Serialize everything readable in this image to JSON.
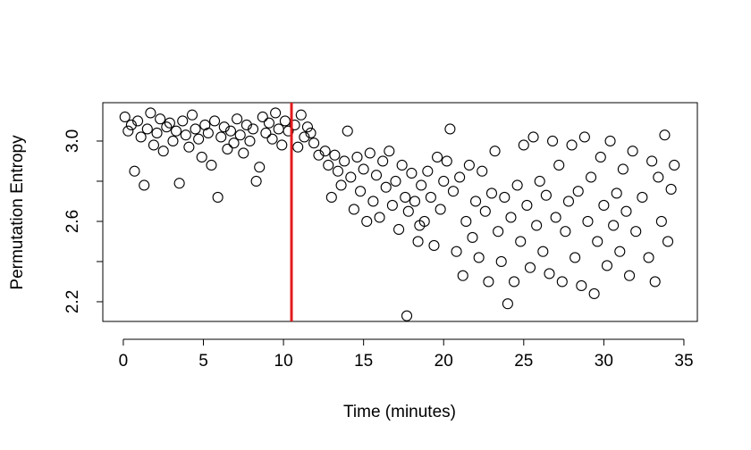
{
  "chart_data": {
    "type": "scatter",
    "xlabel": "Time (minutes)",
    "ylabel": "Permutation Entropy",
    "xlim": [
      -1.28,
      35.84
    ],
    "ylim": [
      2.102,
      3.191
    ],
    "xticks": [
      0,
      5,
      10,
      15,
      20,
      25,
      30,
      35
    ],
    "yticks": [
      2.2,
      2.6,
      {
        "value": 3,
        "label": "3.0"
      }
    ],
    "yminor_ticks": [
      2.4,
      2.8
    ],
    "color": "#000000",
    "vline": {
      "x": 10.5,
      "color": "#e41a1c"
    },
    "x": [
      0.1,
      0.3,
      0.5,
      0.7,
      0.9,
      1.1,
      1.3,
      1.5,
      1.7,
      1.9,
      2.1,
      2.3,
      2.5,
      2.7,
      2.9,
      3.1,
      3.3,
      3.5,
      3.7,
      3.9,
      4.1,
      4.3,
      4.5,
      4.7,
      4.9,
      5.1,
      5.3,
      5.5,
      5.7,
      5.9,
      6.1,
      6.3,
      6.5,
      6.7,
      6.9,
      7.1,
      7.3,
      7.5,
      7.7,
      7.9,
      8.1,
      8.3,
      8.5,
      8.7,
      8.9,
      9.1,
      9.3,
      9.5,
      9.7,
      9.9,
      10.1,
      10.3,
      10.7,
      10.9,
      11.1,
      11.3,
      11.5,
      11.7,
      11.9,
      12.2,
      12.6,
      12.8,
      13.0,
      13.2,
      13.4,
      13.6,
      13.8,
      14.0,
      14.2,
      14.4,
      14.6,
      14.8,
      15.0,
      15.2,
      15.4,
      15.6,
      15.8,
      16.0,
      16.2,
      16.4,
      16.6,
      16.8,
      17.0,
      17.2,
      17.4,
      17.6,
      17.8,
      18.0,
      18.2,
      18.4,
      18.6,
      18.8,
      19.0,
      19.2,
      19.4,
      19.6,
      19.8,
      20.0,
      17.7,
      18.5,
      20.2,
      20.4,
      20.6,
      20.8,
      21.0,
      21.2,
      21.4,
      21.6,
      21.8,
      22.0,
      22.2,
      22.4,
      22.6,
      22.8,
      23.0,
      23.2,
      23.4,
      23.6,
      23.8,
      24.0,
      24.2,
      24.4,
      24.6,
      24.8,
      25.0,
      25.2,
      25.4,
      25.6,
      25.8,
      26.0,
      26.2,
      26.4,
      26.6,
      26.8,
      27.0,
      27.2,
      27.4,
      27.6,
      27.8,
      28.0,
      28.2,
      28.4,
      28.6,
      28.8,
      29.0,
      29.2,
      29.4,
      29.6,
      29.8,
      30.0,
      30.2,
      30.4,
      30.6,
      30.8,
      31.0,
      31.2,
      31.4,
      31.6,
      31.8,
      32.0,
      32.4,
      32.8,
      33.0,
      33.2,
      33.4,
      33.6,
      33.8,
      34.0,
      34.2,
      34.4
    ],
    "values": [
      3.12,
      3.05,
      3.08,
      2.85,
      3.1,
      3.02,
      2.78,
      3.06,
      3.14,
      2.98,
      3.04,
      3.11,
      2.95,
      3.07,
      3.09,
      3.0,
      3.05,
      2.79,
      3.1,
      3.03,
      2.97,
      3.13,
      3.06,
      3.01,
      2.92,
      3.08,
      3.04,
      2.88,
      3.1,
      2.72,
      3.02,
      3.07,
      2.96,
      3.05,
      2.99,
      3.11,
      3.03,
      2.94,
      3.08,
      3.0,
      3.06,
      2.8,
      2.87,
      3.12,
      3.04,
      3.09,
      3.01,
      3.14,
      3.06,
      2.98,
      3.1,
      3.05,
      3.08,
      2.97,
      3.13,
      3.02,
      3.07,
      3.04,
      2.99,
      2.93,
      2.95,
      2.88,
      2.72,
      2.93,
      2.85,
      2.78,
      2.9,
      3.05,
      2.82,
      2.66,
      2.92,
      2.75,
      2.86,
      2.6,
      2.94,
      2.7,
      2.83,
      2.62,
      2.9,
      2.77,
      2.95,
      2.68,
      2.8,
      2.56,
      2.88,
      2.72,
      2.65,
      2.84,
      2.7,
      2.5,
      2.78,
      2.6,
      2.85,
      2.72,
      2.48,
      2.92,
      2.66,
      2.8,
      2.13,
      2.58,
      2.9,
      3.06,
      2.75,
      2.45,
      2.82,
      2.33,
      2.6,
      2.88,
      2.52,
      2.7,
      2.42,
      2.85,
      2.65,
      2.3,
      2.74,
      2.95,
      2.55,
      2.4,
      2.72,
      2.19,
      2.62,
      2.3,
      2.78,
      2.5,
      2.98,
      2.68,
      2.37,
      3.02,
      2.58,
      2.8,
      2.45,
      2.73,
      2.34,
      3.0,
      2.62,
      2.88,
      2.3,
      2.55,
      2.7,
      2.98,
      2.42,
      2.75,
      2.28,
      3.02,
      2.6,
      2.82,
      2.24,
      2.5,
      2.92,
      2.68,
      2.38,
      3.0,
      2.58,
      2.74,
      2.45,
      2.86,
      2.65,
      2.33,
      2.95,
      2.55,
      2.72,
      2.42,
      2.9,
      2.3,
      2.82,
      2.6,
      3.03,
      2.5,
      2.76,
      2.88
    ]
  }
}
